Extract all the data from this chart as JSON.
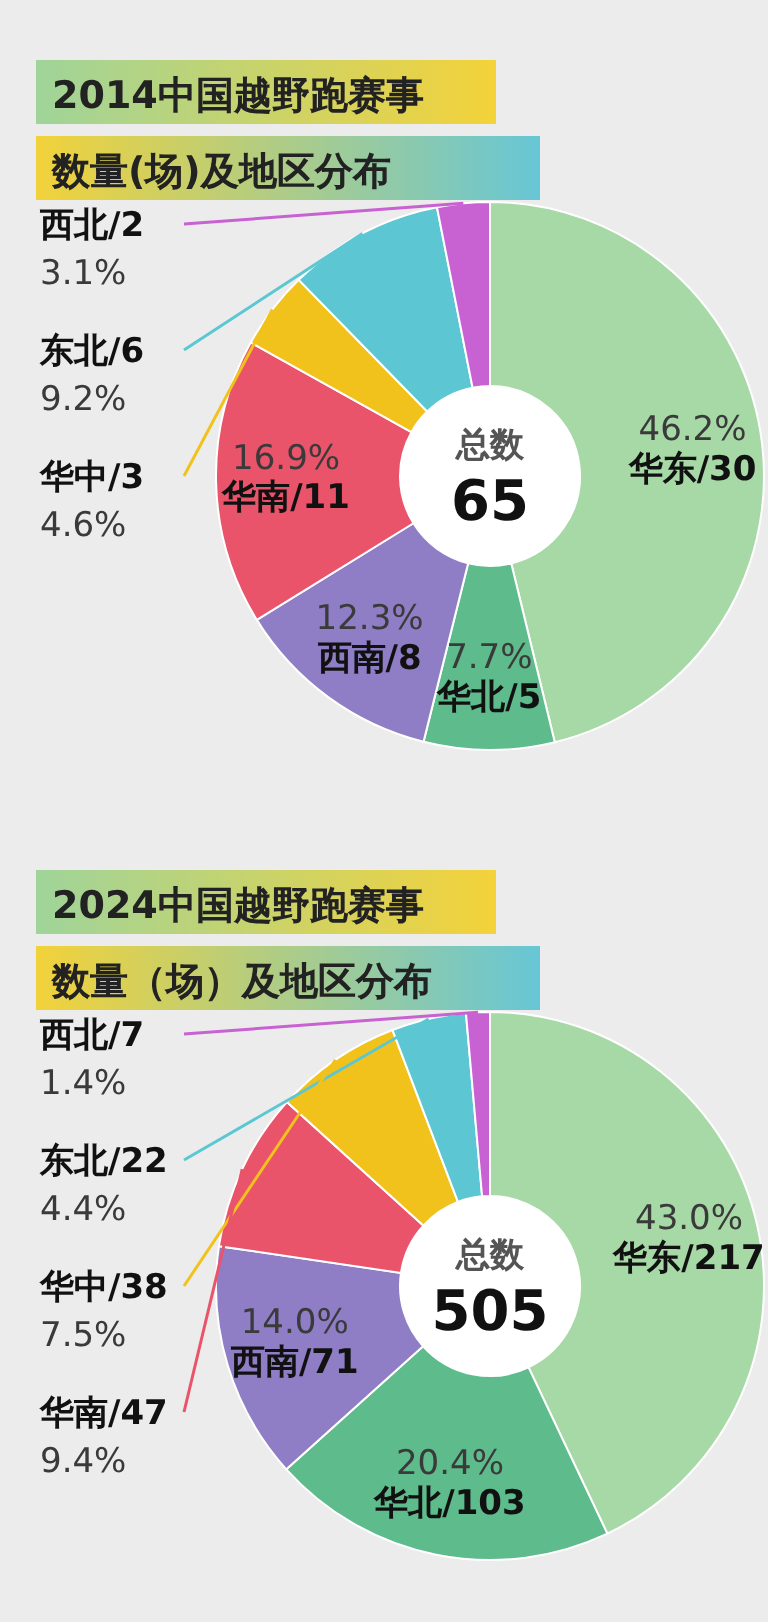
{
  "chart_data": [
    {
      "type": "donut",
      "title": "2014中国越野跑赛事",
      "subtitle": "数量(场)及地区分布",
      "categories": [
        "华东/30",
        "华北/5",
        "西南/8",
        "华南/11",
        "华中/3",
        "东北/6",
        "西北/2"
      ],
      "values": [
        46.2,
        7.7,
        12.3,
        16.9,
        4.6,
        9.2,
        3.1
      ],
      "colors": [
        "#a6d9a6",
        "#5dbb8c",
        "#8f7ec6",
        "#e9546b",
        "#f2c21c",
        "#5cc7d2",
        "#c862d3"
      ],
      "value_labels": [
        "46.2%",
        "7.7%",
        "12.3%",
        "16.9%",
        "4.6%",
        "9.2%",
        "3.1%"
      ],
      "annotations": [
        "总数",
        "65"
      ]
    },
    {
      "type": "donut",
      "title": "2024中国越野跑赛事",
      "subtitle": "数量（场）及地区分布",
      "categories": [
        "华东/217",
        "华北/103",
        "西南/71",
        "华南/47",
        "华中/38",
        "东北/22",
        "西北/7"
      ],
      "values": [
        43.0,
        20.4,
        14.0,
        9.4,
        7.5,
        4.4,
        1.4
      ],
      "colors": [
        "#a6d9a6",
        "#5dbb8c",
        "#8f7ec6",
        "#e9546b",
        "#f2c21c",
        "#5cc7d2",
        "#c862d3"
      ],
      "value_labels": [
        "43.0%",
        "20.4%",
        "14.0%",
        "9.4%",
        "7.5%",
        "4.4%",
        "1.4%"
      ],
      "annotations": [
        "总数",
        "505"
      ]
    }
  ]
}
